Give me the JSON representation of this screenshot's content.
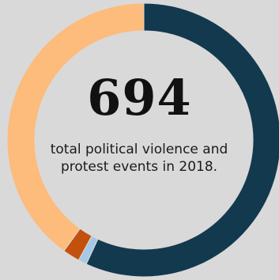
{
  "center": {
    "total": "694",
    "caption": "total political violence and protest events in 2018."
  },
  "chart_data": {
    "type": "pie",
    "variant": "donut",
    "start_angle_deg": 0,
    "direction": "clockwise",
    "slices": [
      {
        "value": 395,
        "color": "#13394e"
      },
      {
        "value": 7,
        "color": "#a6c8e6"
      },
      {
        "value": 14,
        "color": "#c4500e"
      },
      {
        "value": 278,
        "color": "#fdbb7c"
      }
    ],
    "total": 694,
    "legend": "none"
  }
}
